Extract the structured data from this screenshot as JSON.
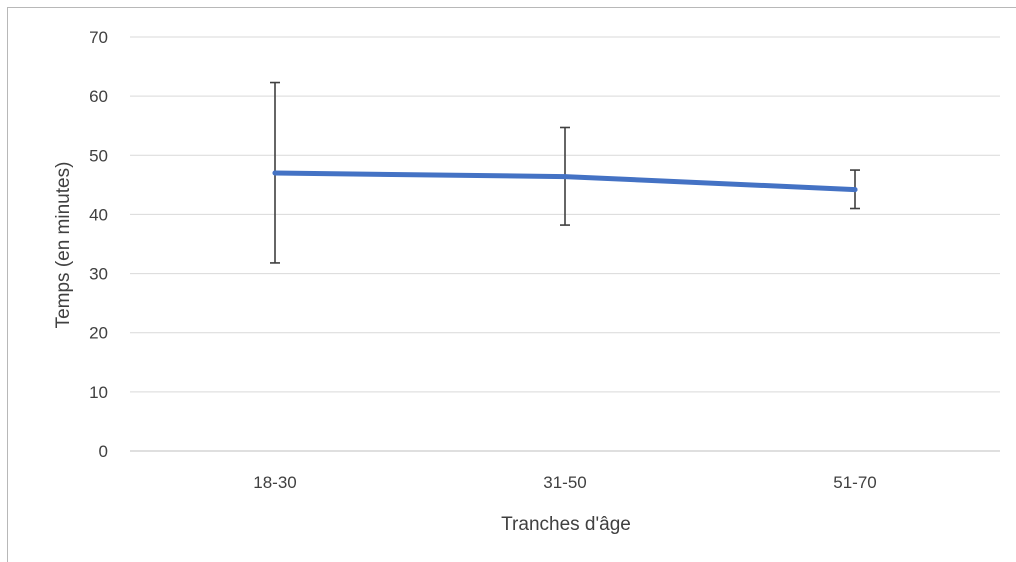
{
  "chart_data": {
    "type": "line",
    "title": "",
    "xlabel": "Tranches d'âge",
    "ylabel": "Temps (en minutes)",
    "categories": [
      "18-30",
      "31-50",
      "51-70"
    ],
    "ylim": [
      0,
      70
    ],
    "yticks": [
      0,
      10,
      20,
      30,
      40,
      50,
      60,
      70
    ],
    "grid": true,
    "legend": "none",
    "series": [
      {
        "values": [
          47.0,
          46.4,
          44.2
        ],
        "error_low": [
          31.8,
          38.2,
          41.0
        ],
        "error_high": [
          62.3,
          54.7,
          47.5
        ],
        "color": "#4472C4"
      }
    ]
  }
}
